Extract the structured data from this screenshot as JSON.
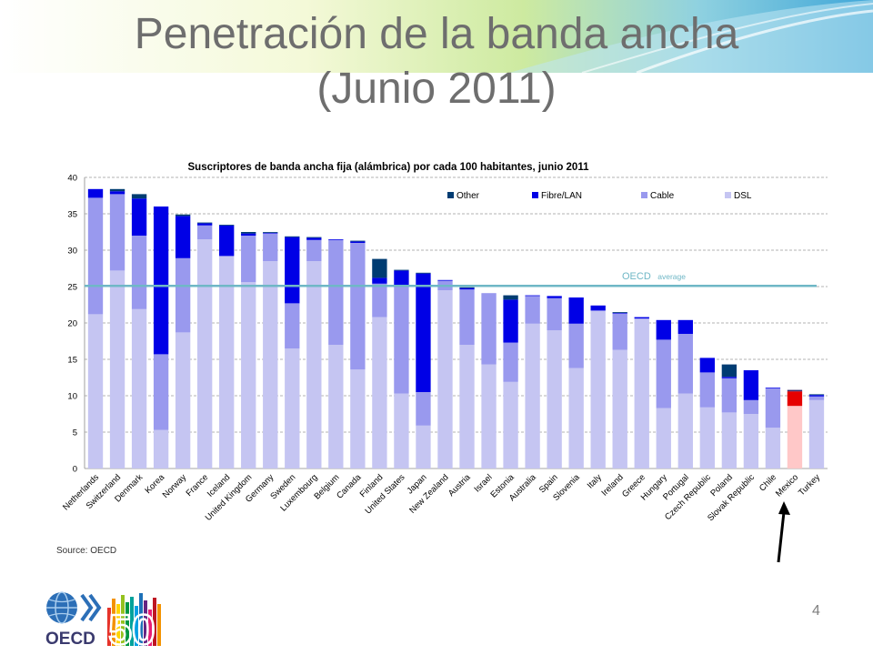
{
  "slide": {
    "title_line1": "Penetración de la banda ancha",
    "title_line2": "(Junio 2011)",
    "source": "Source: OECD",
    "page_number": "4",
    "logo_text": "OECD",
    "logo_number": "50"
  },
  "chart_data": {
    "type": "bar",
    "stacked": true,
    "title": "Suscriptores de banda ancha fija (alámbrica) por cada 100 habitantes, junio 2011",
    "xlabel": "",
    "ylabel": "",
    "ylim": [
      0,
      40
    ],
    "yticks": [
      0,
      5,
      10,
      15,
      20,
      25,
      30,
      35,
      40
    ],
    "grid": true,
    "legend_position": "top",
    "categories": [
      "Netherlands",
      "Switzerland",
      "Denmark",
      "Korea",
      "Norway",
      "France",
      "Iceland",
      "United Kingdom",
      "Germany",
      "Sweden",
      "Luxembourg",
      "Belgium",
      "Canada",
      "Finland",
      "United States",
      "Japan",
      "New Zealand",
      "Austria",
      "Israel",
      "Estonia",
      "Australia",
      "Spain",
      "Slovenia",
      "Italy",
      "Ireland",
      "Greece",
      "Hungary",
      "Portugal",
      "Czech Republic",
      "Poland",
      "Slovak Republic",
      "Chile",
      "Mexico",
      "Turkey"
    ],
    "series": [
      {
        "name": "DSL",
        "color": "#c5c5f2",
        "values": [
          21.2,
          27.2,
          21.9,
          5.3,
          18.7,
          31.5,
          29.2,
          25.6,
          28.5,
          16.5,
          28.5,
          17.0,
          13.6,
          20.8,
          10.3,
          5.9,
          24.5,
          17.0,
          14.3,
          11.9,
          19.9,
          19.0,
          13.8,
          21.7,
          16.3,
          20.6,
          8.3,
          10.3,
          8.4,
          7.7,
          7.5,
          5.6,
          8.6,
          9.4
        ]
      },
      {
        "name": "Cable",
        "color": "#9999ee",
        "values": [
          16.0,
          10.5,
          10.1,
          10.4,
          10.2,
          1.9,
          0.0,
          6.4,
          3.8,
          6.2,
          2.9,
          14.4,
          17.4,
          4.6,
          14.9,
          4.6,
          1.3,
          7.6,
          9.8,
          5.4,
          3.8,
          4.4,
          6.1,
          0.0,
          5.0,
          0.0,
          9.4,
          8.2,
          4.8,
          4.7,
          1.9,
          5.4,
          0.0,
          0.5
        ]
      },
      {
        "name": "Fibre/LAN",
        "color": "#0000e6",
        "values": [
          1.2,
          0.4,
          5.1,
          20.3,
          5.8,
          0.3,
          4.2,
          0.3,
          0.1,
          9.1,
          0.3,
          0.1,
          0.2,
          0.8,
          2.0,
          16.3,
          0.1,
          0.2,
          0.0,
          5.9,
          0.1,
          0.3,
          3.6,
          0.7,
          0.1,
          0.2,
          2.7,
          1.9,
          2.0,
          0.2,
          4.1,
          0.1,
          2.0,
          0.2
        ]
      },
      {
        "name": "Other",
        "color": "#003c72",
        "values": [
          0.0,
          0.3,
          0.6,
          0.0,
          0.2,
          0.1,
          0.1,
          0.2,
          0.1,
          0.1,
          0.1,
          0.0,
          0.1,
          2.6,
          0.1,
          0.1,
          0.0,
          0.1,
          0.0,
          0.6,
          0.0,
          0.0,
          0.0,
          0.0,
          0.1,
          0.0,
          0.0,
          0.0,
          0.0,
          1.7,
          0.0,
          0.0,
          0.2,
          0.1
        ]
      }
    ],
    "highlight": {
      "category": "Mexico",
      "colors": {
        "DSL": "#ffc8c8",
        "Fibre/LAN": "#e60000",
        "Other": "#3a2a6e"
      }
    },
    "annotations": [
      {
        "text_main": "OECD",
        "text_suffix": "average",
        "value": 25.1,
        "color": "#6fb7c6"
      }
    ]
  }
}
